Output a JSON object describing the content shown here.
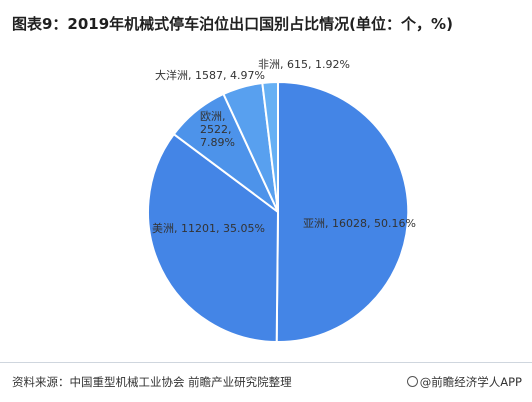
{
  "title": "图表9：2019年机械式停车泊位出口国别占比情况(单位：个，%)",
  "chart_data": {
    "type": "pie",
    "title": "图表9：2019年机械式停车泊位出口国别占比情况(单位：个，%)",
    "unit": "个，%",
    "slices": [
      {
        "name": "亚洲",
        "value": 16028,
        "percent": "50.16%",
        "label": "亚洲, 16028, 50.16%",
        "color": "#4485e6"
      },
      {
        "name": "美洲",
        "value": 11201,
        "percent": "35.05%",
        "label": "美洲, 11201, 35.05%",
        "color": "#4485e6"
      },
      {
        "name": "欧洲",
        "value": 2522,
        "percent": "7.89%",
        "label_lines": [
          "欧洲,",
          "2522,",
          "7.89%"
        ],
        "color": "#4d93ea"
      },
      {
        "name": "大洋洲",
        "value": 1587,
        "percent": "4.97%",
        "label": "大洋洲, 1587, 4.97%",
        "color": "#58a0ef"
      },
      {
        "name": "非洲",
        "value": 615,
        "percent": "1.92%",
        "label": "非洲, 615, 1.92%",
        "color": "#66b0f4"
      }
    ]
  },
  "footer": {
    "source": "资料来源：中国重型机械工业协会 前瞻产业研究院整理",
    "brand": "@前瞻经济学人APP"
  }
}
